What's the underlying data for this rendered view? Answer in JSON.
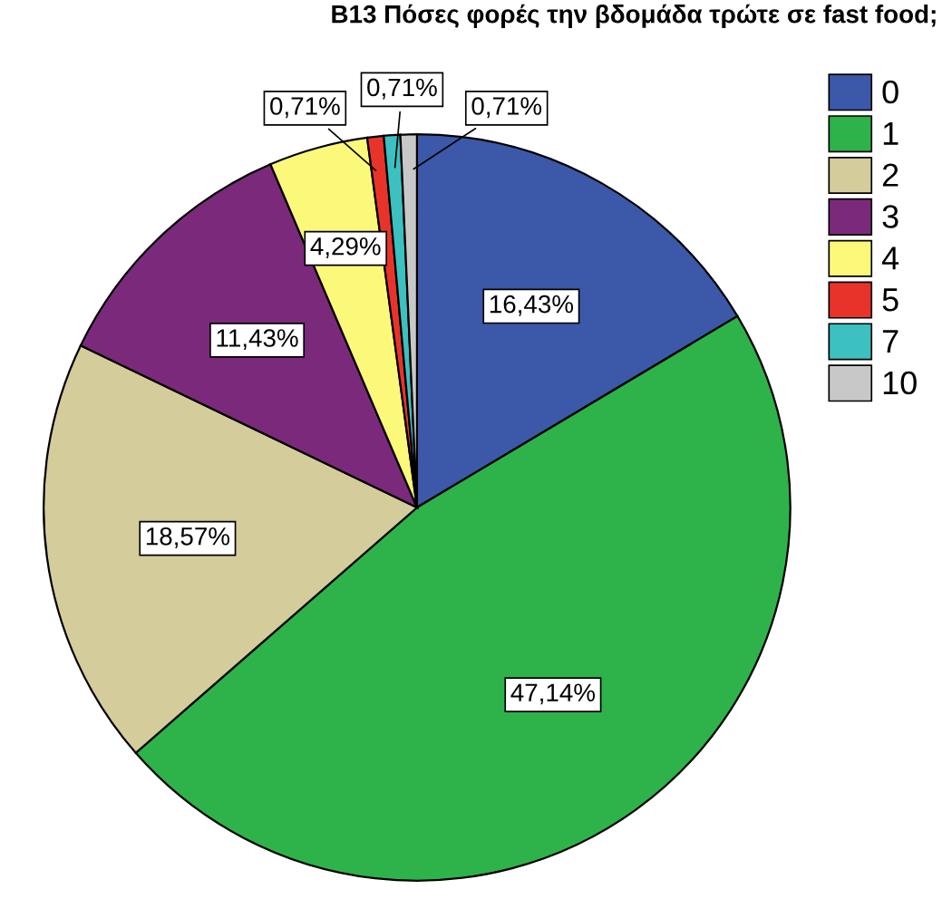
{
  "chart_data": {
    "type": "pie",
    "legend_title": "B13 Πόσες φορές την βδομάδα τρώτε σε fast food;",
    "categories": [
      "0",
      "1",
      "2",
      "3",
      "4",
      "5",
      "7",
      "10"
    ],
    "values": [
      16.43,
      47.14,
      18.57,
      11.43,
      4.29,
      0.71,
      0.71,
      0.71
    ],
    "colors": [
      "#3c58a8",
      "#2db34a",
      "#d4cc9a",
      "#7b2a7b",
      "#fcf87a",
      "#e8332a",
      "#3cc0c0",
      "#c8c8c8"
    ],
    "value_labels": [
      "16,43%",
      "47,14%",
      "18,57%",
      "11,43%",
      "4,29%",
      "0,71%",
      "0,71%",
      "0,71%"
    ],
    "legend": "top right"
  }
}
